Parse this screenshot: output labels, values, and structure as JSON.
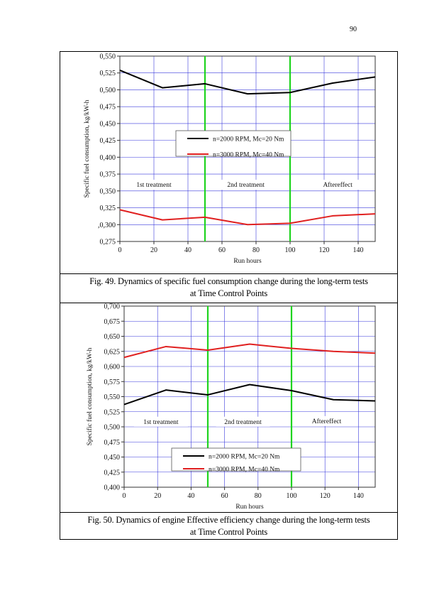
{
  "page": {
    "number": "90"
  },
  "figures": [
    {
      "caption_line1": "Fig. 49. Dynamics of specific fuel consumption change during the long-term tests",
      "caption_line2": "at Time Control Points"
    },
    {
      "caption_line1": "Fig. 50. Dynamics of engine Effective efficiency change during the long-term tests",
      "caption_line2": "at Time Control Points"
    }
  ],
  "chart_data": [
    {
      "type": "line",
      "xlabel": "Run hours",
      "ylabel": "Specific fuel consumption, kg/kW-h",
      "xlim": [
        0,
        150
      ],
      "ylim": [
        0.275,
        0.55
      ],
      "x_ticks": [
        "0",
        "20",
        "40",
        "60",
        "80",
        "100",
        "120",
        "140"
      ],
      "y_ticks": [
        "0,275",
        ",0,300",
        "0,325",
        "0,350",
        "0,375",
        "0,400",
        "0,425",
        "0,450",
        "0,475",
        "0,500",
        "0,525",
        "0,550"
      ],
      "grid": true,
      "separators": [
        50,
        100
      ],
      "legend_position": "center",
      "series": [
        {
          "name": "n=2000 RPM, Mc=20 Nm",
          "color": "#000000",
          "x": [
            0,
            25,
            50,
            75,
            100,
            125,
            150
          ],
          "y": [
            0.529,
            0.503,
            0.509,
            0.494,
            0.496,
            0.51,
            0.519
          ]
        },
        {
          "name": "n=3000 RPM, Mc=40 Nm",
          "color": "#e02020",
          "x": [
            0,
            25,
            50,
            75,
            100,
            125,
            150
          ],
          "y": [
            0.322,
            0.307,
            0.311,
            0.3,
            0.302,
            0.313,
            0.316
          ]
        }
      ],
      "annotations": [
        {
          "text": "1st treatment",
          "x": 20,
          "y": 0.356
        },
        {
          "text": "2nd treatment",
          "x": 74,
          "y": 0.356
        },
        {
          "text": "Aftereffect",
          "x": 128,
          "y": 0.356
        }
      ]
    },
    {
      "type": "line",
      "xlabel": "Run hours",
      "ylabel": "Specific fuel consumption, kg/kW-h",
      "xlim": [
        0,
        150
      ],
      "ylim": [
        0.4,
        0.7
      ],
      "x_ticks": [
        "0",
        "20",
        "40",
        "60",
        "80",
        "100",
        "120",
        "140"
      ],
      "y_ticks": [
        "0,400",
        "0,425",
        "0,450",
        "0,475",
        "0,500",
        "0,525",
        "0,550",
        "0,575",
        "0,600",
        "0,625",
        "0,650",
        "0,675",
        "0,700"
      ],
      "grid": true,
      "separators": [
        50,
        100
      ],
      "legend_position": "bottom-center",
      "series": [
        {
          "name": "n=2000 RPM, Mc=20 Nm",
          "color": "#000000",
          "x": [
            0,
            25,
            50,
            75,
            100,
            125,
            150
          ],
          "y": [
            0.537,
            0.561,
            0.553,
            0.57,
            0.56,
            0.545,
            0.543
          ]
        },
        {
          "name": "n=3000 RPM, Mc=40 Nm",
          "color": "#e02020",
          "x": [
            0,
            25,
            50,
            75,
            100,
            125,
            150
          ],
          "y": [
            0.615,
            0.633,
            0.627,
            0.637,
            0.63,
            0.625,
            0.622
          ]
        }
      ],
      "annotations": [
        {
          "text": "1st treatment",
          "x": 22,
          "y": 0.505
        },
        {
          "text": "2nd treatment",
          "x": 71,
          "y": 0.505
        },
        {
          "text": "Aftereffect",
          "x": 121,
          "y": 0.506
        }
      ]
    }
  ]
}
